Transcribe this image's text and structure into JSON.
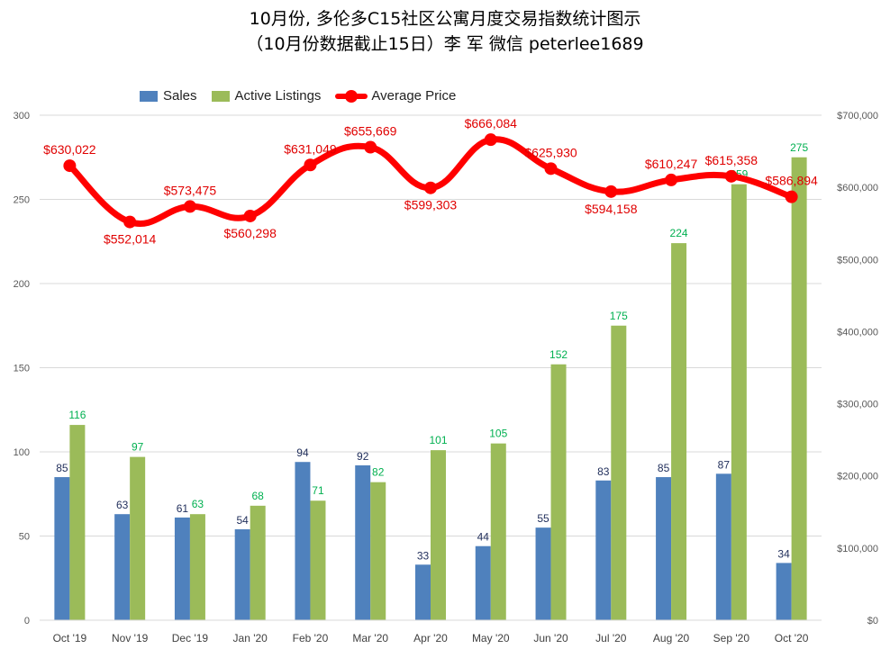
{
  "chart_data": {
    "type": "bar",
    "title": "10月份, 多伦多C15社区公寓月度交易指数统计图示",
    "subtitle": "（10月份数据截止15日）李 军  微信  peterlee1689",
    "categories": [
      "Oct '19",
      "Nov '19",
      "Dec '19",
      "Jan '20",
      "Feb '20",
      "Mar '20",
      "Apr '20",
      "May '20",
      "Jun '20",
      "Jul '20",
      "Aug '20",
      "Sep '20",
      "Oct '20"
    ],
    "series": [
      {
        "name": "Sales",
        "type": "bar",
        "axis": "left",
        "color": "#4f81bd",
        "label_color": "#1f2d5a",
        "values": [
          85,
          63,
          61,
          54,
          94,
          92,
          33,
          44,
          55,
          83,
          85,
          87,
          34
        ]
      },
      {
        "name": "Active Listings",
        "type": "bar",
        "axis": "left",
        "color": "#9bbb59",
        "label_color": "#00b050",
        "values": [
          116,
          97,
          63,
          68,
          71,
          82,
          101,
          105,
          152,
          175,
          224,
          259,
          275
        ]
      },
      {
        "name": "Average Price",
        "type": "line",
        "axis": "right",
        "color": "#ff0000",
        "label_color": "#e00000",
        "values": [
          630022,
          552014,
          573475,
          560298,
          631049,
          655669,
          599303,
          666084,
          625930,
          594158,
          610247,
          615358,
          586894
        ],
        "labels": [
          "$630,022",
          "$552,014",
          "$573,475",
          "$560,298",
          "$631,049",
          "$655,669",
          "$599,303",
          "$666,084",
          "$625,930",
          "$594,158",
          "$610,247",
          "$615,358",
          "$586,894"
        ]
      }
    ],
    "ylim": [
      0,
      300
    ],
    "y_ticks": [
      "0",
      "50",
      "100",
      "150",
      "200",
      "250",
      "300"
    ],
    "y_tick_values": [
      0,
      50,
      100,
      150,
      200,
      250,
      300
    ],
    "y2lim": [
      0,
      700000
    ],
    "y2_ticks": [
      "$0",
      "$100,000",
      "$200,000",
      "$300,000",
      "$400,000",
      "$500,000",
      "$600,000",
      "$700,000"
    ],
    "y2_tick_values": [
      0,
      100000,
      200000,
      300000,
      400000,
      500000,
      600000,
      700000
    ],
    "grid": true,
    "legend_position": "top-left",
    "xlabel": "",
    "ylabel": "",
    "y2label": ""
  }
}
